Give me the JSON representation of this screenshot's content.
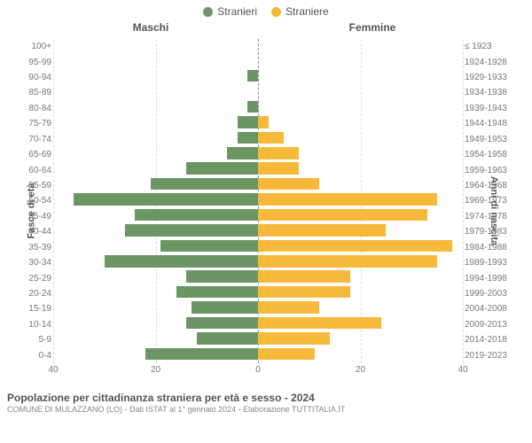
{
  "legend": {
    "male": {
      "label": "Stranieri",
      "color": "#6b9664"
    },
    "female": {
      "label": "Straniere",
      "color": "#f7b939"
    }
  },
  "columns": {
    "male": "Maschi",
    "female": "Femmine"
  },
  "axes": {
    "left_title": "Fasce di età",
    "right_title": "Anni di nascita",
    "x_max": 40,
    "x_ticks_left": [
      40,
      20,
      0
    ],
    "x_ticks_right": [
      20,
      40
    ],
    "grid_color": "#dddddd",
    "center_line_color": "#888888"
  },
  "chart": {
    "type": "population-pyramid",
    "male_color": "#6b9664",
    "female_color": "#f7b939",
    "background_color": "#ffffff",
    "label_fontsize": 10,
    "label_color": "#777777",
    "bar_height_pct": 78,
    "rows": [
      {
        "age": "100+",
        "birth": "≤ 1923",
        "m": 0,
        "f": 0
      },
      {
        "age": "95-99",
        "birth": "1924-1928",
        "m": 0,
        "f": 0
      },
      {
        "age": "90-94",
        "birth": "1929-1933",
        "m": 2,
        "f": 0
      },
      {
        "age": "85-89",
        "birth": "1934-1938",
        "m": 0,
        "f": 0
      },
      {
        "age": "80-84",
        "birth": "1939-1943",
        "m": 2,
        "f": 0
      },
      {
        "age": "75-79",
        "birth": "1944-1948",
        "m": 4,
        "f": 2
      },
      {
        "age": "70-74",
        "birth": "1949-1953",
        "m": 4,
        "f": 5
      },
      {
        "age": "65-69",
        "birth": "1954-1958",
        "m": 6,
        "f": 8
      },
      {
        "age": "60-64",
        "birth": "1959-1963",
        "m": 14,
        "f": 8
      },
      {
        "age": "55-59",
        "birth": "1964-1968",
        "m": 21,
        "f": 12
      },
      {
        "age": "50-54",
        "birth": "1969-1973",
        "m": 36,
        "f": 35
      },
      {
        "age": "45-49",
        "birth": "1974-1978",
        "m": 24,
        "f": 33
      },
      {
        "age": "40-44",
        "birth": "1979-1983",
        "m": 26,
        "f": 25
      },
      {
        "age": "35-39",
        "birth": "1984-1988",
        "m": 19,
        "f": 38
      },
      {
        "age": "30-34",
        "birth": "1989-1993",
        "m": 30,
        "f": 35
      },
      {
        "age": "25-29",
        "birth": "1994-1998",
        "m": 14,
        "f": 18
      },
      {
        "age": "20-24",
        "birth": "1999-2003",
        "m": 16,
        "f": 18
      },
      {
        "age": "15-19",
        "birth": "2004-2008",
        "m": 13,
        "f": 12
      },
      {
        "age": "10-14",
        "birth": "2009-2013",
        "m": 14,
        "f": 24
      },
      {
        "age": "5-9",
        "birth": "2014-2018",
        "m": 12,
        "f": 14
      },
      {
        "age": "0-4",
        "birth": "2019-2023",
        "m": 22,
        "f": 11
      }
    ]
  },
  "footer": {
    "title": "Popolazione per cittadinanza straniera per età e sesso - 2024",
    "subtitle": "COMUNE DI MULAZZANO (LO) - Dati ISTAT al 1° gennaio 2024 - Elaborazione TUTTITALIA.IT"
  }
}
